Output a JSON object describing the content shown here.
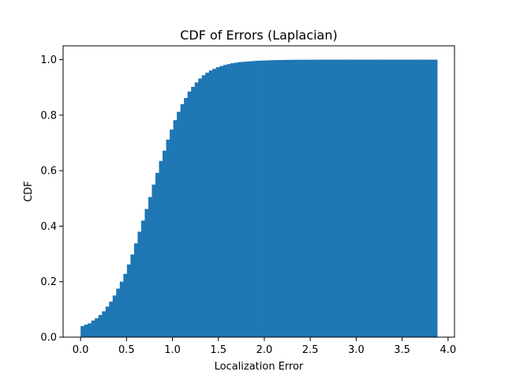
{
  "chart_data": {
    "type": "bar",
    "histtype": "cumulative-histogram",
    "title": "CDF of Errors (Laplacian)",
    "xlabel": "Localization Error",
    "ylabel": "CDF",
    "xlim": [
      -0.19,
      4.07
    ],
    "ylim": [
      0,
      1.05
    ],
    "grid": false,
    "color": "#1f77b4",
    "bin_width": 0.0388,
    "x_min": 0.0,
    "x_max": 3.88,
    "values": [
      0.04,
      0.045,
      0.05,
      0.06,
      0.068,
      0.08,
      0.093,
      0.11,
      0.128,
      0.15,
      0.175,
      0.2,
      0.228,
      0.262,
      0.298,
      0.338,
      0.38,
      0.42,
      0.462,
      0.505,
      0.55,
      0.592,
      0.635,
      0.672,
      0.712,
      0.748,
      0.782,
      0.812,
      0.84,
      0.862,
      0.885,
      0.902,
      0.918,
      0.932,
      0.944,
      0.953,
      0.961,
      0.967,
      0.973,
      0.977,
      0.981,
      0.984,
      0.987,
      0.989,
      0.991,
      0.992,
      0.993,
      0.994,
      0.995,
      0.996,
      0.9965,
      0.997,
      0.9975,
      0.998,
      0.9983,
      0.9986,
      0.9989,
      0.9991,
      0.9993,
      0.9995,
      0.9996,
      0.9997,
      0.9998,
      0.9998,
      0.9999,
      0.9999,
      1.0,
      1.0,
      1.0,
      1.0,
      1.0,
      1.0,
      1.0,
      1.0,
      1.0,
      1.0,
      1.0,
      1.0,
      1.0,
      1.0,
      1.0,
      1.0,
      1.0,
      1.0,
      1.0,
      1.0,
      1.0,
      1.0,
      1.0,
      1.0,
      1.0,
      1.0,
      1.0,
      1.0,
      1.0,
      1.0,
      1.0,
      1.0,
      1.0,
      1.0
    ],
    "xticks": [
      0.0,
      0.5,
      1.0,
      1.5,
      2.0,
      2.5,
      3.0,
      3.5,
      4.0
    ],
    "xtick_labels": [
      "0.0",
      "0.5",
      "1.0",
      "1.5",
      "2.0",
      "2.5",
      "3.0",
      "3.5",
      "4.0"
    ],
    "yticks": [
      0.0,
      0.2,
      0.4,
      0.6,
      0.8,
      1.0
    ],
    "ytick_labels": [
      "0.0",
      "0.2",
      "0.4",
      "0.6",
      "0.8",
      "1.0"
    ]
  }
}
